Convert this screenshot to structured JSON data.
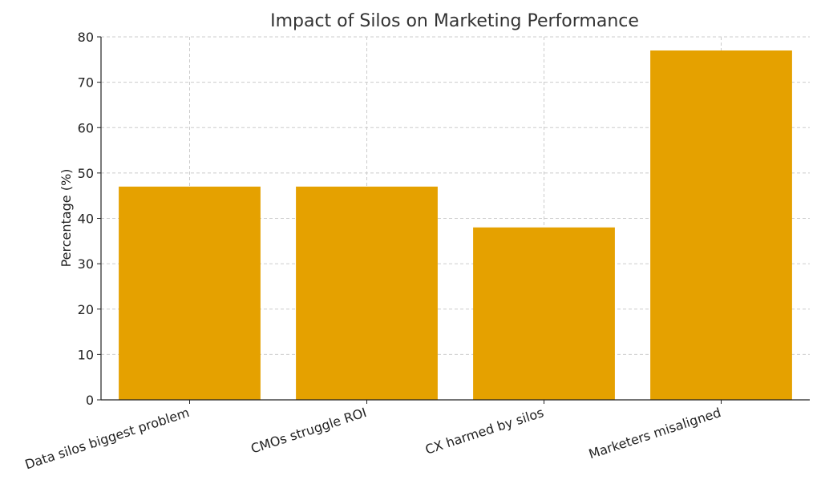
{
  "chart_data": {
    "type": "bar",
    "title": "Impact of Silos on Marketing Performance",
    "xlabel": "",
    "ylabel": "Percentage (%)",
    "categories": [
      "Data silos biggest problem",
      "CMOs struggle ROI",
      "CX harmed by silos",
      "Marketers misaligned"
    ],
    "values": [
      47,
      47,
      38,
      77
    ],
    "ylim": [
      0,
      80
    ],
    "yticks": [
      0,
      10,
      20,
      30,
      40,
      50,
      60,
      70,
      80
    ],
    "grid": true,
    "bar_color": "#e5a100"
  }
}
